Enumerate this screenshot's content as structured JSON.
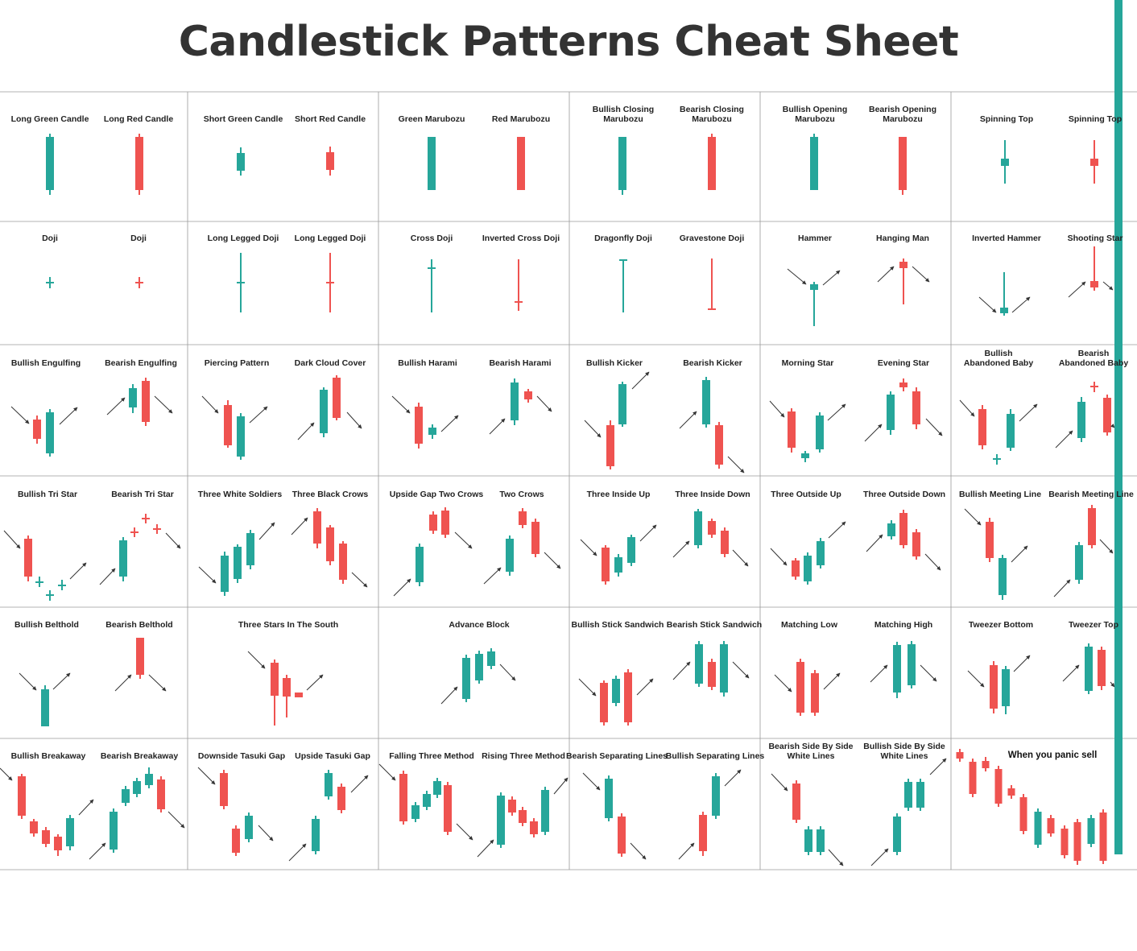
{
  "title": "Candlestick Patterns Cheat Sheet",
  "colors": {
    "bull": "#26a69a",
    "bear": "#ef5350",
    "grid": "#9a9a9a",
    "arrow": "#333333",
    "text": "#333333",
    "accent": "#26a69a"
  },
  "rows": [
    [
      {
        "labels": [
          [
            "Long Green Candle"
          ],
          [
            "Long Red Candle"
          ]
        ]
      },
      {
        "labels": [
          [
            "Short Green Candle"
          ],
          [
            "Short Red Candle"
          ]
        ]
      },
      {
        "labels": [
          [
            "Green Marubozu"
          ],
          [
            "Red Marubozu"
          ]
        ]
      },
      {
        "labels": [
          [
            "Bullish Closing",
            "Marubozu"
          ],
          [
            "Bearish Closing",
            "Marubozu"
          ]
        ]
      },
      {
        "labels": [
          [
            "Bullish Opening",
            "Marubozu"
          ],
          [
            "Bearish Opening",
            "Marubozu"
          ]
        ]
      },
      {
        "labels": [
          [
            "Spinning Top"
          ],
          [
            "Spinning Top"
          ]
        ]
      }
    ],
    [
      {
        "labels": [
          [
            "Doji"
          ],
          [
            "Doji"
          ]
        ]
      },
      {
        "labels": [
          [
            "Long Legged Doji"
          ],
          [
            "Long Legged Doji"
          ]
        ]
      },
      {
        "labels": [
          [
            "Cross Doji"
          ],
          [
            "Inverted Cross Doji"
          ]
        ]
      },
      {
        "labels": [
          [
            "Dragonfly Doji"
          ],
          [
            "Gravestone Doji"
          ]
        ]
      },
      {
        "labels": [
          [
            "Hammer"
          ],
          [
            "Hanging Man"
          ]
        ]
      },
      {
        "labels": [
          [
            "Inverted Hammer"
          ],
          [
            "Shooting Star"
          ]
        ]
      }
    ],
    [
      {
        "labels": [
          [
            "Bullish Engulfing"
          ],
          [
            "Bearish Engulfing"
          ]
        ]
      },
      {
        "labels": [
          [
            "Piercing Pattern"
          ],
          [
            "Dark Cloud Cover"
          ]
        ]
      },
      {
        "labels": [
          [
            "Bullish Harami"
          ],
          [
            "Bearish Harami"
          ]
        ]
      },
      {
        "labels": [
          [
            "Bullish Kicker"
          ],
          [
            "Bearish Kicker"
          ]
        ]
      },
      {
        "labels": [
          [
            "Morning Star"
          ],
          [
            "Evening Star"
          ]
        ]
      },
      {
        "labels": [
          [
            "Bullish",
            "Abandoned Baby"
          ],
          [
            "Bearish",
            "Abandoned Baby"
          ]
        ]
      }
    ],
    [
      {
        "labels": [
          [
            "Bullish Tri Star"
          ],
          [
            "Bearish Tri Star"
          ]
        ]
      },
      {
        "labels": [
          [
            "Three White Soldiers"
          ],
          [
            "Three Black Crows"
          ]
        ]
      },
      {
        "labels": [
          [
            "Upside Gap Two Crows"
          ],
          [
            "Two Crows"
          ]
        ]
      },
      {
        "labels": [
          [
            "Three Inside Up"
          ],
          [
            "Three Inside Down"
          ]
        ]
      },
      {
        "labels": [
          [
            "Three Outside Up"
          ],
          [
            "Three Outside Down"
          ]
        ]
      },
      {
        "labels": [
          [
            "Bullish Meeting Line"
          ],
          [
            "Bearish Meeting Line"
          ]
        ]
      }
    ],
    [
      {
        "labels": [
          [
            "Bullish Belthold"
          ],
          [
            "Bearish Belthold"
          ]
        ]
      },
      {
        "labels": [
          [
            "Three Stars In The South"
          ]
        ]
      },
      {
        "labels": [
          [
            "Advance Block"
          ]
        ]
      },
      {
        "labels": [
          [
            "Bullish Stick Sandwich"
          ],
          [
            "Bearish Stick Sandwich"
          ]
        ]
      },
      {
        "labels": [
          [
            "Matching Low"
          ],
          [
            "Matching High"
          ]
        ]
      },
      {
        "labels": [
          [
            "Tweezer Bottom"
          ],
          [
            "Tweezer Top"
          ]
        ]
      }
    ],
    [
      {
        "labels": [
          [
            "Bullish Breakaway"
          ],
          [
            "Bearish Breakaway"
          ]
        ]
      },
      {
        "labels": [
          [
            "Downside Tasuki Gap"
          ],
          [
            "Upside Tasuki Gap"
          ]
        ]
      },
      {
        "labels": [
          [
            "Falling Three Method"
          ],
          [
            "Rising Three Method"
          ]
        ]
      },
      {
        "labels": [
          [
            "Bearish Separating Lines"
          ],
          [
            "Bullish Separating Lines"
          ]
        ]
      },
      {
        "labels": [
          [
            "Bearish Side By Side",
            "White Lines"
          ],
          [
            "Bullish Side By Side",
            "White Lines"
          ]
        ]
      },
      {
        "labels": [
          [
            "When you panic sell"
          ]
        ],
        "meme": true
      }
    ]
  ]
}
